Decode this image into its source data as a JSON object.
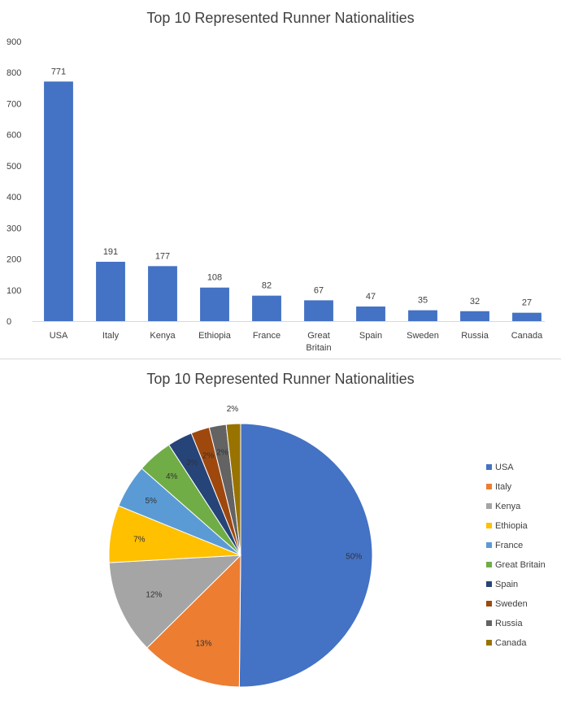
{
  "chart_data": [
    {
      "type": "bar",
      "title": "Top 10 Represented Runner Nationalities",
      "categories": [
        "USA",
        "Italy",
        "Kenya",
        "Ethiopia",
        "France",
        "Great Britain",
        "Spain",
        "Sweden",
        "Russia",
        "Canada"
      ],
      "category_lines": [
        [
          "USA"
        ],
        [
          "Italy"
        ],
        [
          "Kenya"
        ],
        [
          "Ethiopia"
        ],
        [
          "France"
        ],
        [
          "Great",
          "Britain"
        ],
        [
          "Spain"
        ],
        [
          "Sweden"
        ],
        [
          "Russia"
        ],
        [
          "Canada"
        ]
      ],
      "values": [
        771,
        191,
        177,
        108,
        82,
        67,
        47,
        35,
        32,
        27
      ],
      "data_labels": [
        "771",
        "191",
        "177",
        "108",
        "82",
        "67",
        "47",
        "35",
        "32",
        "27"
      ],
      "ylim": [
        0,
        900
      ],
      "yticks": [
        0,
        100,
        200,
        300,
        400,
        500,
        600,
        700,
        800,
        900
      ],
      "grid": false,
      "color": "#4472C4"
    },
    {
      "type": "pie",
      "title": "Top 10 Represented Runner Nationalities",
      "categories": [
        "USA",
        "Italy",
        "Kenya",
        "Ethiopia",
        "France",
        "Great Britain",
        "Spain",
        "Sweden",
        "Russia",
        "Canada"
      ],
      "values": [
        771,
        191,
        177,
        108,
        82,
        67,
        47,
        35,
        32,
        27
      ],
      "percent_labels": [
        "50%",
        "13%",
        "12%",
        "7%",
        "5%",
        "4%",
        "3%",
        "2%",
        "2%",
        "2%"
      ],
      "colors": [
        "#4472C4",
        "#ED7D31",
        "#A5A5A5",
        "#FFC000",
        "#5B9BD5",
        "#70AD47",
        "#264478",
        "#9E480E",
        "#636363",
        "#997300"
      ],
      "legend_position": "right"
    }
  ]
}
